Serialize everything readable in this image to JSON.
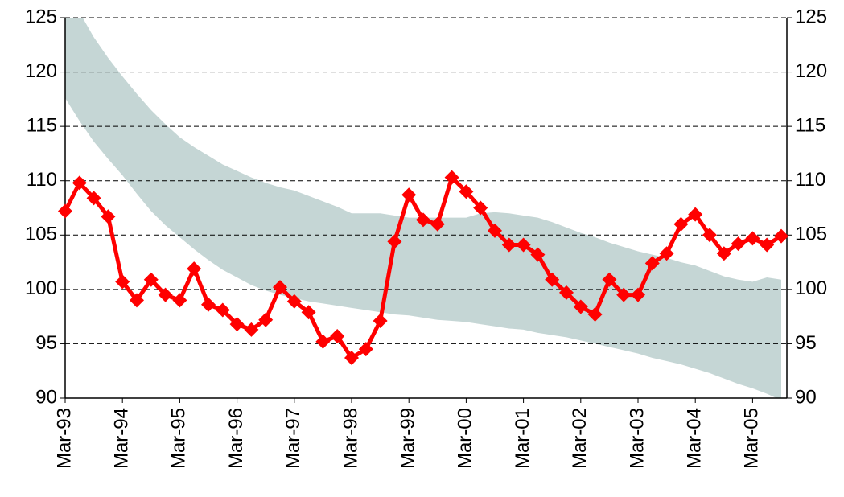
{
  "chart_data": {
    "type": "line",
    "categories": [
      "Mar-93",
      null,
      null,
      null,
      "Mar-94",
      null,
      null,
      null,
      "Mar-95",
      null,
      null,
      null,
      "Mar-96",
      null,
      null,
      null,
      "Mar-97",
      null,
      null,
      null,
      "Mar-98",
      null,
      null,
      null,
      "Mar-99",
      null,
      null,
      null,
      "Mar-00",
      null,
      null,
      null,
      "Mar-01",
      null,
      null,
      null,
      "Mar-02",
      null,
      null,
      null,
      "Mar-03",
      null,
      null,
      null,
      "Mar-04",
      null,
      null,
      null,
      "Mar-05",
      null,
      null
    ],
    "series": [
      {
        "color": "#ff0000",
        "values": [
          107.2,
          109.8,
          108.4,
          106.7,
          100.7,
          99.0,
          100.9,
          99.5,
          99.0,
          101.9,
          98.6,
          98.1,
          96.8,
          96.3,
          97.2,
          100.2,
          98.9,
          97.9,
          95.2,
          95.7,
          93.7,
          94.5,
          97.1,
          104.4,
          108.7,
          106.4,
          106.0,
          110.3,
          109.0,
          107.5,
          105.4,
          104.1,
          104.1,
          103.2,
          100.9,
          99.7,
          98.4,
          97.7,
          100.9,
          99.5,
          99.5,
          102.4,
          103.3,
          106.0,
          106.9,
          105.0,
          103.3,
          104.2,
          104.7,
          104.1,
          104.9
        ]
      }
    ],
    "band": {
      "color": "#c5d6d5",
      "upper": [
        128,
        125.5,
        123.2,
        121.3,
        119.6,
        118.0,
        116.5,
        115.2,
        114.0,
        113.1,
        112.3,
        111.5,
        110.9,
        110.3,
        109.8,
        109.4,
        109.1,
        108.6,
        108.1,
        107.6,
        107.0,
        107.0,
        107.0,
        106.8,
        106.6,
        106.6,
        106.6,
        106.6,
        106.6,
        107.0,
        107.1,
        107.0,
        106.8,
        106.6,
        106.2,
        105.7,
        105.2,
        104.8,
        104.3,
        103.9,
        103.5,
        103.2,
        102.9,
        102.5,
        102.2,
        101.7,
        101.2,
        100.9,
        100.7,
        101.1,
        100.9
      ],
      "lower": [
        117.6,
        115.5,
        113.6,
        112.0,
        110.5,
        108.8,
        107.2,
        105.9,
        104.8,
        103.7,
        102.7,
        101.8,
        101.1,
        100.4,
        99.9,
        99.5,
        99.2,
        98.9,
        98.7,
        98.5,
        98.3,
        98.1,
        97.9,
        97.7,
        97.6,
        97.4,
        97.2,
        97.1,
        97.0,
        96.8,
        96.6,
        96.4,
        96.3,
        96.0,
        95.8,
        95.6,
        95.3,
        95.0,
        94.7,
        94.4,
        94.1,
        93.7,
        93.4,
        93.1,
        92.7,
        92.3,
        91.8,
        91.3,
        90.9,
        90.4,
        89.8
      ]
    },
    "ylim": [
      90,
      125
    ],
    "yticks": [
      90,
      95,
      100,
      105,
      110,
      115,
      120,
      125
    ],
    "grid": true
  }
}
